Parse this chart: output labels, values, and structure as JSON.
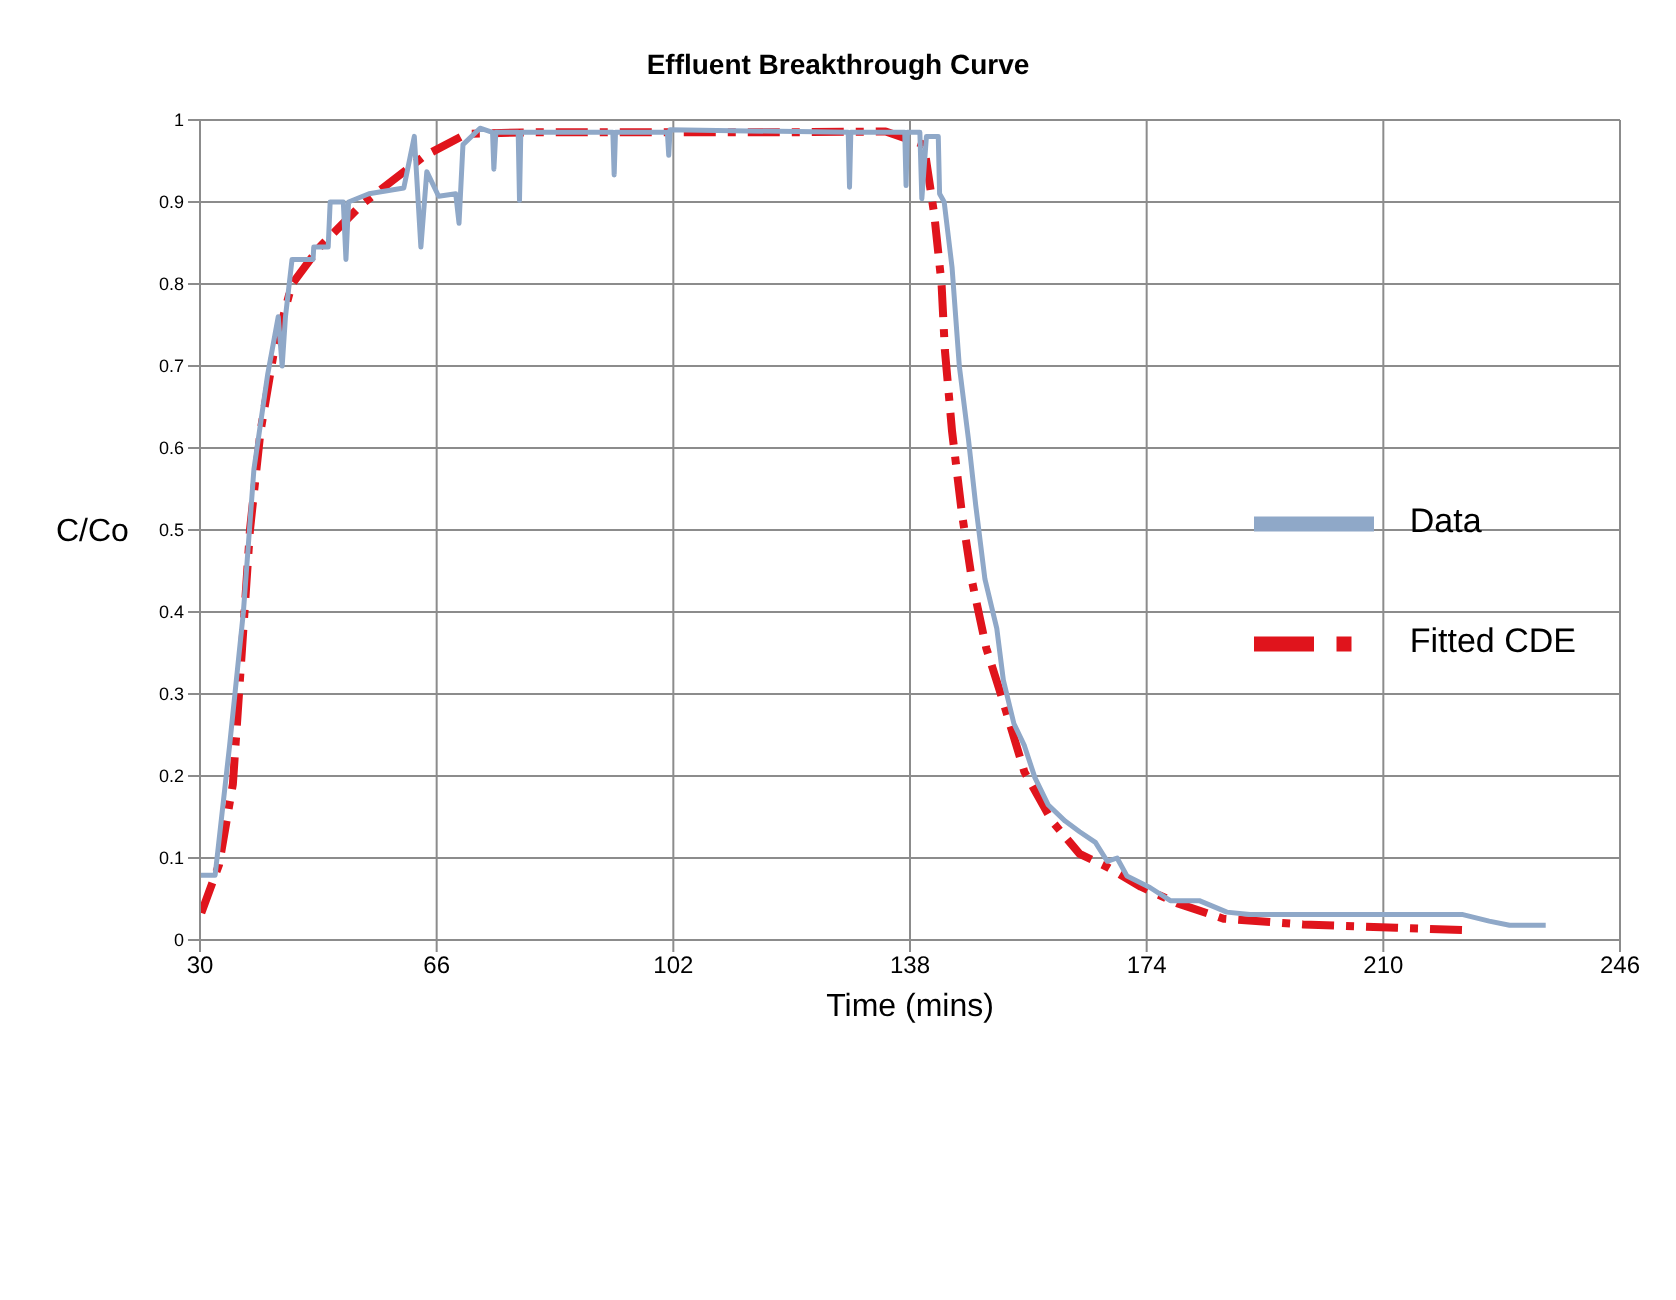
{
  "chart_data": {
    "type": "line",
    "title": "Effluent Breakthrough Curve",
    "xlabel": "Time (mins)",
    "ylabel": "C/Co",
    "xlim": [
      30,
      246
    ],
    "xticks": [
      30,
      66,
      102,
      138,
      174,
      210,
      246
    ],
    "ylim": [
      0,
      1
    ],
    "yticks": [
      0,
      0.1,
      0.2,
      0.3,
      0.4,
      0.5,
      0.6,
      0.7,
      0.8,
      0.9,
      1
    ],
    "grid": true,
    "legend": "right",
    "marker": "none",
    "series": [
      {
        "name": "Fitted CDE",
        "color": "#e0141c",
        "line_style": "dashed",
        "x": [
          30.2,
          32.9,
          35,
          36.4,
          37.6,
          39.2,
          41.3,
          44,
          48.2,
          54.6,
          64.1,
          70.5,
          80,
          100,
          120,
          134.3,
          140.1,
          141.7,
          142.8,
          143.3,
          144.4,
          145.9,
          147.5,
          149.6,
          152.2,
          155.4,
          159.6,
          163.8,
          168,
          173.1,
          178.6,
          185.7,
          197.8,
          212,
          222.6
        ],
        "values": [
          0.033,
          0.092,
          0.19,
          0.356,
          0.5,
          0.62,
          0.72,
          0.8,
          0.845,
          0.897,
          0.956,
          0.983,
          0.985,
          0.985,
          0.985,
          0.986,
          0.97,
          0.884,
          0.8,
          0.72,
          0.62,
          0.52,
          0.435,
          0.356,
          0.29,
          0.205,
          0.145,
          0.105,
          0.089,
          0.065,
          0.045,
          0.026,
          0.019,
          0.015,
          0.012
        ]
      },
      {
        "name": "Data",
        "color": "#8fa8c8",
        "line_style": "solid",
        "x": [
          30,
          32.3,
          34.5,
          36.6,
          38.2,
          40.3,
          41.9,
          42.5,
          43,
          44,
          47.2,
          47.3,
          49.5,
          49.8,
          51.8,
          52.2,
          52.6,
          55.7,
          61,
          62.6,
          63.6,
          64.5,
          66.3,
          68.9,
          69.4,
          70,
          72.6,
          74.5,
          74.7,
          75,
          78.4,
          78.6,
          78.8,
          92.8,
          93,
          93.2,
          101.1,
          101.3,
          101.5,
          128.6,
          128.8,
          129,
          137.2,
          137.4,
          137.6,
          139.5,
          139.8,
          140.5,
          142.3,
          142.5,
          143.2,
          144.4,
          145.5,
          146.9,
          148,
          149.4,
          151.2,
          152.2,
          153.8,
          155.4,
          157,
          159,
          161.6,
          163.8,
          166.2,
          168,
          169.5,
          171,
          174.5,
          177.6,
          182,
          186.2,
          189.7,
          222.1,
          226.1,
          229.2,
          234.7
        ],
        "values": [
          0.079,
          0.079,
          0.237,
          0.4,
          0.574,
          0.69,
          0.76,
          0.7,
          0.76,
          0.83,
          0.83,
          0.845,
          0.845,
          0.9,
          0.9,
          0.83,
          0.9,
          0.91,
          0.917,
          0.98,
          0.845,
          0.937,
          0.907,
          0.91,
          0.874,
          0.97,
          0.99,
          0.985,
          0.94,
          0.985,
          0.985,
          0.902,
          0.985,
          0.985,
          0.933,
          0.985,
          0.985,
          0.957,
          0.988,
          0.985,
          0.918,
          0.985,
          0.985,
          0.92,
          0.985,
          0.985,
          0.904,
          0.98,
          0.98,
          0.91,
          0.9,
          0.82,
          0.7,
          0.61,
          0.53,
          0.44,
          0.38,
          0.317,
          0.264,
          0.237,
          0.198,
          0.165,
          0.145,
          0.132,
          0.119,
          0.096,
          0.1,
          0.078,
          0.064,
          0.048,
          0.048,
          0.034,
          0.031,
          0.031,
          0.023,
          0.018,
          0.018
        ]
      }
    ]
  }
}
